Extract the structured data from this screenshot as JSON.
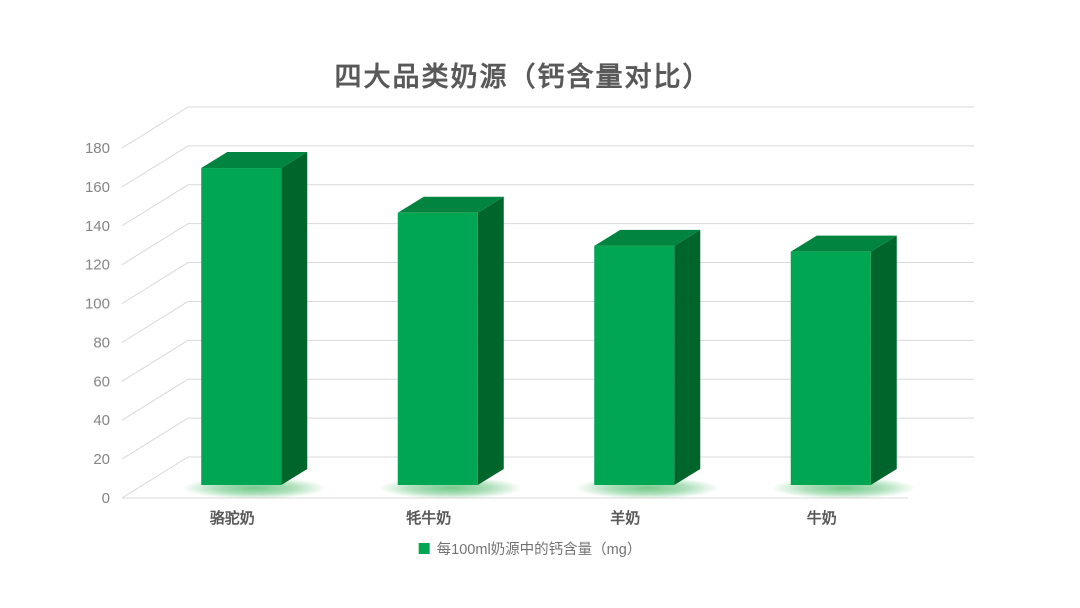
{
  "chart_data": {
    "type": "bar",
    "style": "3d-column",
    "title": "四大品类奶源（钙含量对比）",
    "categories": [
      "骆驼奶",
      "牦牛奶",
      "羊奶",
      "牛奶"
    ],
    "series": [
      {
        "name": "每100ml奶源中的钙含量（mg）",
        "values": [
          163,
          140,
          123,
          120
        ]
      }
    ],
    "xlabel": "",
    "ylabel": "",
    "ylim": [
      0,
      180
    ],
    "ytick_step": 20,
    "ytick_labels": [
      "0",
      "20",
      "40",
      "60",
      "80",
      "100",
      "120",
      "140",
      "160",
      "180"
    ],
    "grid": true,
    "legend_position": "bottom",
    "colors": {
      "bar_front": "#00A651",
      "bar_top": "#008440",
      "bar_side": "#00652B",
      "bar_glow": "#6DC785",
      "gridline": "#D9D9D9",
      "axis_text": "#858585",
      "category_text": "#595959",
      "title_text": "#595959",
      "legend_text": "#737373",
      "background": "#FFFFFF"
    }
  }
}
